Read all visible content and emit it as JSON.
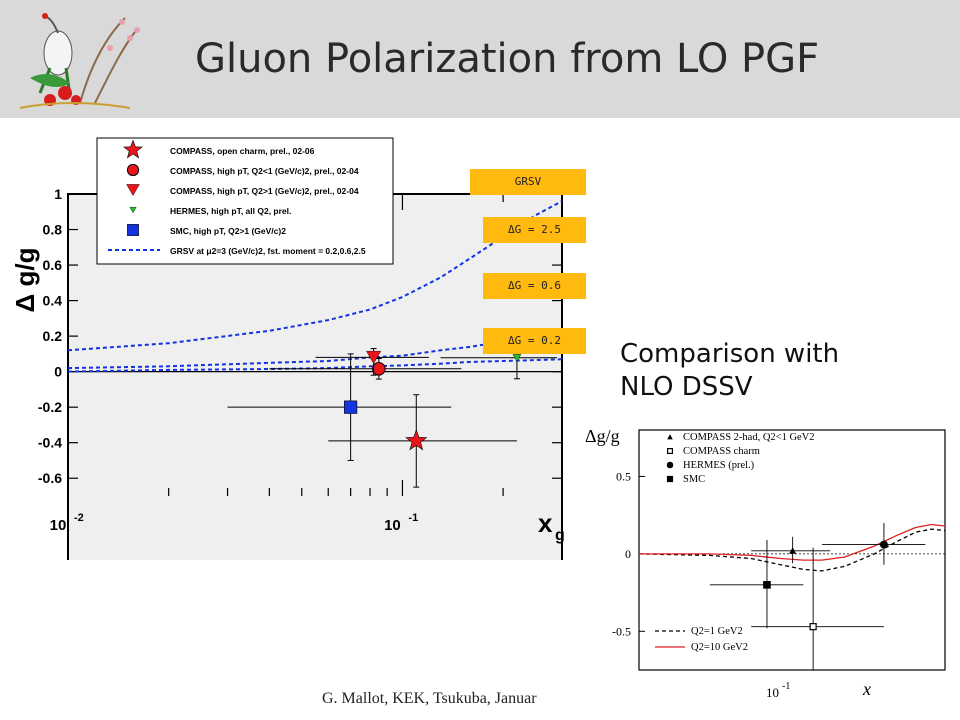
{
  "slide": {
    "title": "Gluon Polarization from LO PGF",
    "footer": "G. Mallot, KEK, Tsukuba, Januar",
    "comparison_line1": "Comparison with",
    "comparison_line2": "NLO DSSV"
  },
  "tags": {
    "grsv": "GRSV",
    "dg25": "ΔG = 2.5",
    "dg06": "ΔG = 0.6",
    "dg02": "ΔG = 0.2",
    "color": "#ffb90f"
  },
  "chart_data": [
    {
      "type": "scatter",
      "ylabel": "Δ g/g",
      "xlabel": "x_g",
      "xscale": "log",
      "xlim": [
        0.01,
        0.3
      ],
      "ylim": [
        -0.7,
        1.0
      ],
      "yticks": [
        1,
        0.8,
        0.6,
        0.4,
        0.2,
        0,
        -0.2,
        -0.4,
        -0.6
      ],
      "ytick_labels": [
        "1",
        "0.8",
        "0.6",
        "0.4",
        "0.2",
        "0",
        "-0.2",
        "-0.4",
        "-0.6"
      ],
      "xtick_labels": [
        "10^-2",
        "10^-1"
      ],
      "legend": {
        "placement": "top-left",
        "entries": [
          {
            "label": "COMPASS, open charm, prel., 02-06",
            "marker": "star",
            "color": "#e8161b"
          },
          {
            "label": "COMPASS, high pT, Q2<1 (GeV/c)2, prel., 02-04",
            "marker": "circle",
            "color": "#e8161b"
          },
          {
            "label": "COMPASS, high pT, Q2>1 (GeV/c)2, prel., 02-04",
            "marker": "triangle-down",
            "color": "#e8161b"
          },
          {
            "label": "HERMES, high pT, all Q2, prel.",
            "marker": "triangle-down",
            "color": "#22c322"
          },
          {
            "label": "SMC, high pT, Q2>1 (GeV/c)2",
            "marker": "square",
            "color": "#1432e0"
          },
          {
            "label": "GRSV at μ2=3 (GeV/c)2, fst. moment = 0.2,0.6,2.5",
            "marker": "dashed-line",
            "color": "#1432e0"
          }
        ]
      },
      "points": [
        {
          "name": "COMPASS open charm",
          "x": 0.11,
          "y": -0.39,
          "xlo": 0.06,
          "xhi": 0.22,
          "ylo": -0.65,
          "yhi": -0.13,
          "ylo_sys": -0.63,
          "yhi_sys": -0.15,
          "marker": "star",
          "color": "#e8161b"
        },
        {
          "name": "COMPASS high pT Q2<1",
          "x": 0.085,
          "y": 0.016,
          "xlo": 0.04,
          "xhi": 0.15,
          "ylo": -0.042,
          "yhi": 0.074,
          "marker": "circle",
          "color": "#e8161b"
        },
        {
          "name": "COMPASS high pT Q2>1",
          "x": 0.082,
          "y": 0.08,
          "xlo": 0.055,
          "xhi": 0.12,
          "ylo": -0.02,
          "yhi": 0.13,
          "marker": "triangle-down",
          "color": "#e8161b"
        },
        {
          "name": "HERMES high pT",
          "x": 0.22,
          "y": 0.078,
          "xlo": 0.13,
          "xhi": 0.29,
          "ylo": -0.04,
          "yhi": 0.2,
          "marker": "triangle-down",
          "color": "#22c322"
        },
        {
          "name": "SMC high pT",
          "x": 0.07,
          "y": -0.2,
          "xlo": 0.03,
          "xhi": 0.14,
          "ylo": -0.5,
          "yhi": 0.1,
          "marker": "square",
          "color": "#1432e0"
        }
      ],
      "curves": [
        {
          "name": "ΔG = 2.5",
          "x": [
            0.01,
            0.02,
            0.04,
            0.06,
            0.08,
            0.1,
            0.13,
            0.16,
            0.2,
            0.25,
            0.3
          ],
          "y": [
            0.12,
            0.16,
            0.23,
            0.29,
            0.35,
            0.42,
            0.53,
            0.64,
            0.76,
            0.88,
            0.96
          ]
        },
        {
          "name": "ΔG = 0.6",
          "x": [
            0.01,
            0.02,
            0.04,
            0.06,
            0.08,
            0.1,
            0.13,
            0.16,
            0.2,
            0.25,
            0.3
          ],
          "y": [
            0.02,
            0.03,
            0.05,
            0.06,
            0.08,
            0.09,
            0.12,
            0.14,
            0.17,
            0.2,
            0.22
          ]
        },
        {
          "name": "ΔG = 0.2",
          "x": [
            0.01,
            0.02,
            0.04,
            0.06,
            0.08,
            0.1,
            0.13,
            0.16,
            0.2,
            0.25,
            0.3
          ],
          "y": [
            0.0,
            0.01,
            0.015,
            0.02,
            0.03,
            0.035,
            0.045,
            0.055,
            0.06,
            0.065,
            0.07
          ]
        }
      ]
    },
    {
      "type": "scatter",
      "ylabel": "Δg/g",
      "xlabel": "x",
      "xscale": "log",
      "xlim": [
        0.02,
        0.4
      ],
      "ylim": [
        -0.75,
        0.8
      ],
      "yticks": [
        0.5,
        0,
        -0.5
      ],
      "ytick_labels": [
        "0.5",
        "0",
        "-0.5"
      ],
      "xtick_label_base": "10",
      "xtick_label_exp": "-1",
      "legend_top": [
        {
          "label": "COMPASS 2-had, Q2<1 GeV2",
          "marker": "triangle-up"
        },
        {
          "label": "COMPASS charm",
          "marker": "open-square"
        },
        {
          "label": "HERMES (prel.)",
          "marker": "circle"
        },
        {
          "label": "SMC",
          "marker": "square"
        }
      ],
      "legend_bottom": [
        {
          "label": "Q2=1 GeV2",
          "style": "dashed",
          "color": "#000000"
        },
        {
          "label": "Q2=10 GeV2",
          "style": "solid",
          "color": "#e02020"
        }
      ],
      "points": [
        {
          "name": "COMPASS 2-had",
          "x": 0.09,
          "y": 0.02,
          "xlo": 0.06,
          "xhi": 0.13,
          "ylo": -0.06,
          "yhi": 0.11,
          "marker": "triangle-up"
        },
        {
          "name": "COMPASS charm",
          "x": 0.11,
          "y": -0.47,
          "xlo": 0.06,
          "xhi": 0.22,
          "ylo": -0.98,
          "yhi": 0.04,
          "marker": "open-square"
        },
        {
          "name": "HERMES (prel.)",
          "x": 0.22,
          "y": 0.06,
          "xlo": 0.12,
          "xhi": 0.33,
          "ylo": -0.07,
          "yhi": 0.2,
          "marker": "circle"
        },
        {
          "name": "SMC",
          "x": 0.07,
          "y": -0.2,
          "xlo": 0.04,
          "xhi": 0.1,
          "ylo": -0.48,
          "yhi": 0.09,
          "marker": "square"
        }
      ],
      "curves": [
        {
          "name": "Q2=1 GeV2",
          "style": "dashed",
          "color": "#000000",
          "x": [
            0.02,
            0.04,
            0.06,
            0.08,
            0.1,
            0.12,
            0.15,
            0.2,
            0.25,
            0.3,
            0.35,
            0.4
          ],
          "y": [
            0.0,
            -0.01,
            -0.03,
            -0.07,
            -0.1,
            -0.11,
            -0.08,
            0.0,
            0.08,
            0.14,
            0.16,
            0.15
          ]
        },
        {
          "name": "Q2=10 GeV2",
          "style": "solid",
          "color": "#e02020",
          "x": [
            0.02,
            0.04,
            0.06,
            0.08,
            0.1,
            0.12,
            0.15,
            0.2,
            0.25,
            0.3,
            0.35,
            0.4
          ],
          "y": [
            0.0,
            0.0,
            -0.01,
            -0.03,
            -0.04,
            -0.04,
            -0.02,
            0.05,
            0.12,
            0.17,
            0.19,
            0.18
          ]
        }
      ]
    }
  ]
}
